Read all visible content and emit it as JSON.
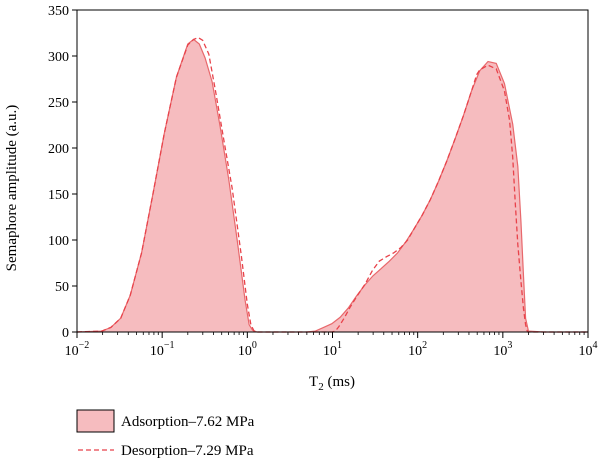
{
  "chart_data": {
    "type": "area",
    "xscale": "log",
    "xlim": [
      0.01,
      10000
    ],
    "ylim": [
      0,
      350
    ],
    "xlabel_main": "T",
    "xlabel_sub": "2",
    "xlabel_unit": " (ms)",
    "ylabel": "Semaphore amplitude (a.u.)",
    "y_ticks": [
      0,
      50,
      100,
      150,
      200,
      250,
      300,
      350
    ],
    "x_ticks": [
      {
        "value": 0.01,
        "base": "10",
        "exp": "−2"
      },
      {
        "value": 0.1,
        "base": "10",
        "exp": "−1"
      },
      {
        "value": 1,
        "base": "10",
        "exp": "0"
      },
      {
        "value": 10,
        "base": "10",
        "exp": "1"
      },
      {
        "value": 100,
        "base": "10",
        "exp": "2"
      },
      {
        "value": 1000,
        "base": "10",
        "exp": "3"
      },
      {
        "value": 10000,
        "base": "10",
        "exp": "4"
      }
    ],
    "series": [
      {
        "name": "Adsorption–7.62 MPa",
        "style": "filled",
        "color": "#e8686c",
        "fill": "#f6bcbf",
        "x": [
          0.01,
          0.0196,
          0.025,
          0.0326,
          0.0422,
          0.0573,
          0.0779,
          0.106,
          0.147,
          0.2,
          0.234,
          0.273,
          0.319,
          0.386,
          0.478,
          0.605,
          0.76,
          0.94,
          1.05,
          1.15,
          1.3,
          2,
          3,
          4,
          5.04,
          6.3,
          7.86,
          9.82,
          12.3,
          15.3,
          19.1,
          23.9,
          29.8,
          37.3,
          46.5,
          58.1,
          72.6,
          90.6,
          113,
          141,
          176,
          220,
          275,
          344,
          429,
          536,
          670,
          837,
          1045,
          1306,
          1500,
          1632,
          1750,
          1850,
          2000,
          3000,
          10000
        ],
        "y": [
          0,
          1,
          5,
          15,
          40,
          86,
          150,
          216,
          277,
          313,
          318,
          313,
          298,
          272,
          224,
          166,
          100,
          35,
          8,
          2,
          0,
          0,
          0,
          0,
          0,
          1,
          5,
          9,
          16,
          26,
          39,
          51,
          61,
          69,
          77,
          86,
          98,
          112,
          127,
          144,
          164,
          186,
          210,
          235,
          262,
          284,
          294,
          292,
          270,
          226,
          180,
          120,
          60,
          15,
          1,
          0,
          0
        ]
      },
      {
        "name": "Desorption–7.29 MPa",
        "style": "dashed",
        "color": "#e8424a",
        "x": [
          0.01,
          0.0196,
          0.025,
          0.0326,
          0.0422,
          0.0573,
          0.0779,
          0.106,
          0.147,
          0.2,
          0.234,
          0.266,
          0.299,
          0.353,
          0.423,
          0.529,
          0.664,
          0.85,
          1.0,
          1.1,
          1.2,
          1.3,
          5.04,
          6.3,
          9.82,
          10.8,
          11.9,
          13.7,
          16.1,
          19.7,
          24.1,
          29.5,
          35.4,
          43.3,
          52.4,
          63.8,
          76.2,
          90.6,
          113,
          141,
          176,
          220,
          275,
          344,
          429,
          495,
          536,
          670,
          837,
          1045,
          1200,
          1306,
          1400,
          1500,
          1632,
          1750,
          1850,
          1950,
          3000,
          10000
        ],
        "y": [
          0,
          1,
          5,
          15,
          40,
          86,
          150,
          216,
          277,
          312,
          318,
          320,
          317,
          302,
          262,
          209,
          156,
          83,
          30,
          8,
          1,
          0,
          0,
          0,
          0,
          1,
          6,
          15,
          27,
          40,
          52,
          67,
          77,
          82,
          86,
          92,
          100,
          112,
          127,
          144,
          164,
          186,
          210,
          235,
          262,
          280,
          285,
          290,
          286,
          262,
          230,
          190,
          140,
          95,
          55,
          25,
          8,
          0,
          0,
          0
        ]
      }
    ],
    "legend": [
      {
        "label": "Adsorption–7.62 MPa",
        "style": "filled-box"
      },
      {
        "label": "Desorption–7.29 MPa",
        "style": "dashed-line"
      }
    ],
    "legend_position": "bottom-left below plot",
    "grid": false
  }
}
